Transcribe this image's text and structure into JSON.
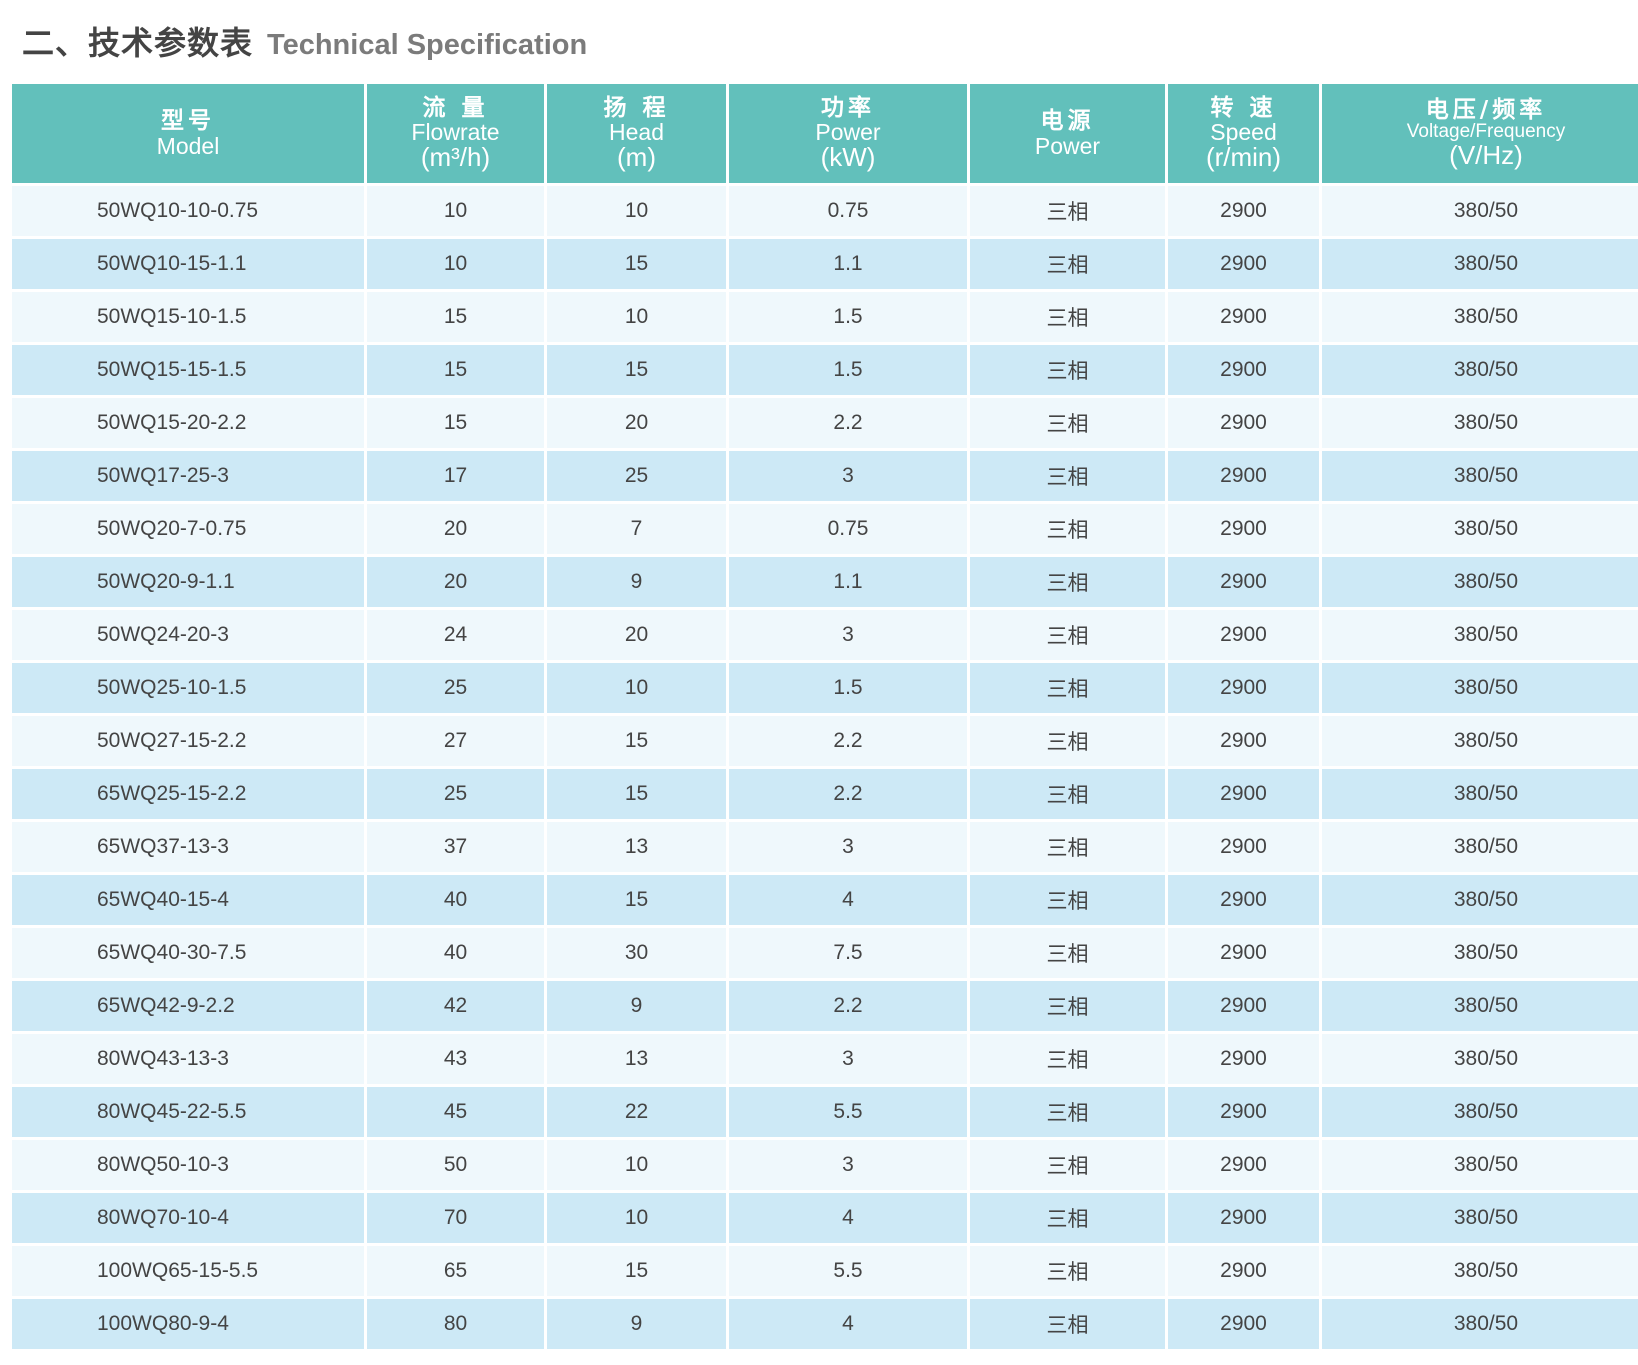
{
  "title": {
    "zh": "二、技术参数表",
    "en": "Technical Specification"
  },
  "colors": {
    "header": "#62c0bb",
    "row_light": "#eff8fc",
    "row_blue": "#cde9f6",
    "text": "#444444"
  },
  "headers": [
    {
      "zh": "型号",
      "en": "Model",
      "unit": ""
    },
    {
      "zh": "流 量",
      "en": "Flowrate",
      "unit": "(m³/h)"
    },
    {
      "zh": "扬 程",
      "en": "Head",
      "unit": "(m)"
    },
    {
      "zh": "功率",
      "en": "Power",
      "unit": "(kW)"
    },
    {
      "zh": "电源",
      "en": "Power",
      "unit": ""
    },
    {
      "zh": "转 速",
      "en": "Speed",
      "unit": "(r/min)"
    },
    {
      "zh": "电压/频率",
      "en": "Voltage/Frequency",
      "unit": "(V/Hz)"
    }
  ],
  "rows": [
    [
      "50WQ10-10-0.75",
      "10",
      "10",
      "0.75",
      "三相",
      "2900",
      "380/50"
    ],
    [
      "50WQ10-15-1.1",
      "10",
      "15",
      "1.1",
      "三相",
      "2900",
      "380/50"
    ],
    [
      "50WQ15-10-1.5",
      "15",
      "10",
      "1.5",
      "三相",
      "2900",
      "380/50"
    ],
    [
      "50WQ15-15-1.5",
      "15",
      "15",
      "1.5",
      "三相",
      "2900",
      "380/50"
    ],
    [
      "50WQ15-20-2.2",
      "15",
      "20",
      "2.2",
      "三相",
      "2900",
      "380/50"
    ],
    [
      "50WQ17-25-3",
      "17",
      "25",
      "3",
      "三相",
      "2900",
      "380/50"
    ],
    [
      "50WQ20-7-0.75",
      "20",
      "7",
      "0.75",
      "三相",
      "2900",
      "380/50"
    ],
    [
      "50WQ20-9-1.1",
      "20",
      "9",
      "1.1",
      "三相",
      "2900",
      "380/50"
    ],
    [
      "50WQ24-20-3",
      "24",
      "20",
      "3",
      "三相",
      "2900",
      "380/50"
    ],
    [
      "50WQ25-10-1.5",
      "25",
      "10",
      "1.5",
      "三相",
      "2900",
      "380/50"
    ],
    [
      "50WQ27-15-2.2",
      "27",
      "15",
      "2.2",
      "三相",
      "2900",
      "380/50"
    ],
    [
      "65WQ25-15-2.2",
      "25",
      "15",
      "2.2",
      "三相",
      "2900",
      "380/50"
    ],
    [
      "65WQ37-13-3",
      "37",
      "13",
      "3",
      "三相",
      "2900",
      "380/50"
    ],
    [
      "65WQ40-15-4",
      "40",
      "15",
      "4",
      "三相",
      "2900",
      "380/50"
    ],
    [
      "65WQ40-30-7.5",
      "40",
      "30",
      "7.5",
      "三相",
      "2900",
      "380/50"
    ],
    [
      "65WQ42-9-2.2",
      "42",
      "9",
      "2.2",
      "三相",
      "2900",
      "380/50"
    ],
    [
      "80WQ43-13-3",
      "43",
      "13",
      "3",
      "三相",
      "2900",
      "380/50"
    ],
    [
      "80WQ45-22-5.5",
      "45",
      "22",
      "5.5",
      "三相",
      "2900",
      "380/50"
    ],
    [
      "80WQ50-10-3",
      "50",
      "10",
      "3",
      "三相",
      "2900",
      "380/50"
    ],
    [
      "80WQ70-10-4",
      "70",
      "10",
      "4",
      "三相",
      "2900",
      "380/50"
    ],
    [
      "100WQ65-15-5.5",
      "65",
      "15",
      "5.5",
      "三相",
      "2900",
      "380/50"
    ],
    [
      "100WQ80-9-4",
      "80",
      "9",
      "4",
      "三相",
      "2900",
      "380/50"
    ]
  ]
}
